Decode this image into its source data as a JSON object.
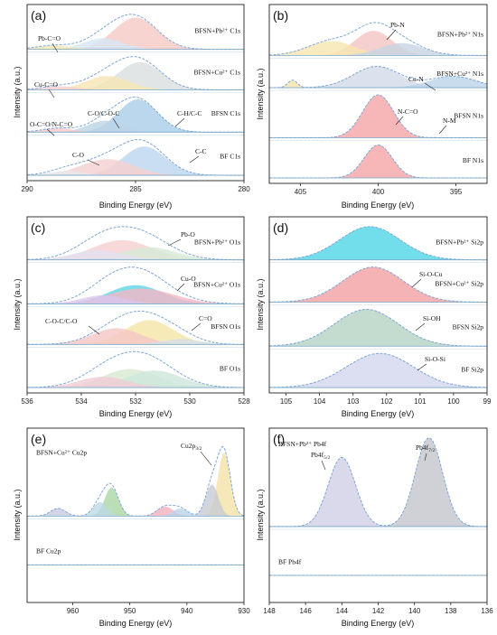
{
  "chart_data": [
    {
      "panel": "(a)",
      "type": "line",
      "xlabel": "Binding Energy (eV)",
      "ylabel": "Intensity (a.u.)",
      "xlim": [
        290,
        280
      ],
      "xticks": [
        290,
        285,
        280
      ],
      "traces": [
        {
          "label": "BFSN+Pb²⁺ C1s",
          "peaks": [
            {
              "c": 285.0,
              "w": 1.0,
              "h": 1.0,
              "col": "#f6c9c4"
            },
            {
              "c": 286.5,
              "w": 0.9,
              "h": 0.35,
              "col": "#d6e6f5"
            },
            {
              "c": 288.8,
              "w": 0.8,
              "h": 0.12,
              "col": "#f4e6b0"
            }
          ]
        },
        {
          "label": "BFSN+Cu²⁺ C1s",
          "peaks": [
            {
              "c": 284.8,
              "w": 1.0,
              "h": 0.9,
              "col": "#d9dede"
            },
            {
              "c": 286.3,
              "w": 1.0,
              "h": 0.45,
              "col": "#f6e6b4"
            },
            {
              "c": 288.5,
              "w": 0.8,
              "h": 0.12,
              "col": "#f5cfd0"
            }
          ]
        },
        {
          "label": "BFSN C1s",
          "peaks": [
            {
              "c": 284.9,
              "w": 0.9,
              "h": 1.0,
              "col": "#a9cde8"
            },
            {
              "c": 286.4,
              "w": 0.8,
              "h": 0.35,
              "col": "#bcd3e6"
            },
            {
              "c": 288.6,
              "w": 0.7,
              "h": 0.12,
              "col": "#f4c9c9"
            }
          ]
        },
        {
          "label": "BF C1s",
          "peaks": [
            {
              "c": 284.6,
              "w": 1.0,
              "h": 0.8,
              "col": "#bcd7ee"
            },
            {
              "c": 286.3,
              "w": 1.2,
              "h": 0.45,
              "col": "#f6cfd0"
            },
            {
              "c": 288.2,
              "w": 0.8,
              "h": 0.12,
              "col": "#e5e9ee"
            }
          ]
        }
      ],
      "annotations": [
        "Pb-C=O",
        "Cu-C=O",
        "O-C=O/N-C=O",
        "C-O/C-O-C",
        "C-H/C-C",
        "C-O",
        "C-C"
      ]
    },
    {
      "panel": "(b)",
      "type": "line",
      "xlabel": "Binding Energy (eV)",
      "ylabel": "Intensity (a.u.)",
      "xlim": [
        407,
        393
      ],
      "xticks": [
        405,
        400,
        395
      ],
      "traces": [
        {
          "label": "BFSN+Pb²⁺ N1s",
          "peaks": [
            {
              "c": 400.3,
              "w": 1.2,
              "h": 0.6,
              "col": "#f4c4c2"
            },
            {
              "c": 403.0,
              "w": 1.5,
              "h": 0.35,
              "col": "#f6e6b0"
            },
            {
              "c": 398.5,
              "w": 1.4,
              "h": 0.3,
              "col": "#c7d5e3"
            }
          ]
        },
        {
          "label": "BFSN+Cu²⁺ N1s",
          "peaks": [
            {
              "c": 400.1,
              "w": 1.5,
              "h": 0.85,
              "col": "#d3dbe8"
            },
            {
              "c": 395.2,
              "w": 1.5,
              "h": 0.45,
              "col": "#bcd3ea"
            },
            {
              "c": 405.5,
              "w": 0.3,
              "h": 0.3,
              "col": "#f4e2a8"
            }
          ]
        },
        {
          "label": "BFSN N1s",
          "peaks": [
            {
              "c": 400.0,
              "w": 1.0,
              "h": 1.0,
              "col": "#f5a5a7"
            }
          ]
        },
        {
          "label": "BF N1s",
          "peaks": [
            {
              "c": 400.0,
              "w": 0.9,
              "h": 1.0,
              "col": "#f5a5a7"
            }
          ]
        }
      ],
      "annotations": [
        "Pb-N",
        "Cu-N",
        "N-C=O",
        "N-M"
      ]
    },
    {
      "panel": "(c)",
      "type": "line",
      "xlabel": "Binding Energy (eV)",
      "ylabel": "Intensity (a.u.)",
      "xlim": [
        536,
        528
      ],
      "xticks": [
        536,
        534,
        532,
        530,
        528
      ],
      "traces": [
        {
          "label": "BFSN+Pb²⁺ O1s",
          "peaks": [
            {
              "c": 532.5,
              "w": 1.1,
              "h": 0.7,
              "col": "#f5cfd0"
            },
            {
              "c": 531.5,
              "w": 1.0,
              "h": 0.45,
              "col": "#d6ead6"
            },
            {
              "c": 533.4,
              "w": 0.9,
              "h": 0.35,
              "col": "#e4e0f0"
            }
          ]
        },
        {
          "label": "BFSN+Cu²⁺ O1s",
          "peaks": [
            {
              "c": 532.0,
              "w": 1.0,
              "h": 0.55,
              "col": "#5fd5e6"
            },
            {
              "c": 531.8,
              "w": 1.2,
              "h": 0.45,
              "col": "#f4b7c4"
            },
            {
              "c": 533.2,
              "w": 0.8,
              "h": 0.25,
              "col": "#d9c7ee"
            }
          ]
        },
        {
          "label": "BFSN O1s",
          "peaks": [
            {
              "c": 531.5,
              "w": 0.9,
              "h": 0.9,
              "col": "#f4e6a6"
            },
            {
              "c": 532.7,
              "w": 0.9,
              "h": 0.6,
              "col": "#f5c6c4"
            },
            {
              "c": 530.3,
              "w": 0.7,
              "h": 0.2,
              "col": "#d6e0ea"
            }
          ]
        },
        {
          "label": "BF O1s",
          "peaks": [
            {
              "c": 532.2,
              "w": 1.0,
              "h": 0.6,
              "col": "#d9e8d2"
            },
            {
              "c": 531.3,
              "w": 1.0,
              "h": 0.55,
              "col": "#cde6dc"
            },
            {
              "c": 533.2,
              "w": 0.9,
              "h": 0.35,
              "col": "#f0ccd6"
            }
          ]
        }
      ],
      "annotations": [
        "Pb-O",
        "Cu-O",
        "C-O-C/C-O",
        "C=O"
      ]
    },
    {
      "panel": "(d)",
      "type": "line",
      "xlabel": "Binding Energy (eV)",
      "ylabel": "Intensity (a.u.)",
      "xlim": [
        105.5,
        99
      ],
      "xticks": [
        105,
        104,
        103,
        102,
        101,
        100,
        99
      ],
      "traces": [
        {
          "label": "BFSN+Pb²⁺ Si2p",
          "peaks": [
            {
              "c": 102.5,
              "w": 0.9,
              "h": 1.0,
              "col": "#4fd6e6"
            }
          ]
        },
        {
          "label": "BFSN+Cu²⁺ Si2p",
          "peaks": [
            {
              "c": 102.4,
              "w": 0.9,
              "h": 1.0,
              "col": "#f3a0a3"
            }
          ]
        },
        {
          "label": "BFSN Si2p",
          "peaks": [
            {
              "c": 102.6,
              "w": 0.95,
              "h": 1.0,
              "col": "#b4d3c3"
            }
          ]
        },
        {
          "label": "BF Si2p",
          "peaks": [
            {
              "c": 102.2,
              "w": 1.0,
              "h": 1.0,
              "col": "#d3d6ee"
            }
          ]
        }
      ],
      "annotations": [
        "Si-O-Cu",
        "Si-OH",
        "Si-O-Si"
      ]
    },
    {
      "panel": "(e)",
      "type": "line",
      "xlabel": "Binding Energy (eV)",
      "ylabel": "Intensity (a.u.)",
      "xlim": [
        968,
        930
      ],
      "xticks": [
        960,
        950,
        940,
        930
      ],
      "traces": [
        {
          "label": "BFSN+Cu²⁺ Cu2p",
          "peaks": [
            {
              "c": 933.5,
              "w": 1.1,
              "h": 1.0,
              "col": "#f4e2a6"
            },
            {
              "c": 935.6,
              "w": 1.1,
              "h": 0.5,
              "col": "#c7cad2"
            },
            {
              "c": 953.2,
              "w": 1.2,
              "h": 0.45,
              "col": "#a9d6a2"
            },
            {
              "c": 955.2,
              "w": 1.2,
              "h": 0.22,
              "col": "#bdd8e6"
            },
            {
              "c": 943.8,
              "w": 1.4,
              "h": 0.15,
              "col": "#f3b0bc"
            },
            {
              "c": 962.6,
              "w": 1.3,
              "h": 0.12,
              "col": "#c7cbe0"
            },
            {
              "c": 941.2,
              "w": 1.3,
              "h": 0.12,
              "col": "#bcd3ea"
            }
          ]
        },
        {
          "label": "BF Cu2p",
          "peaks": []
        }
      ],
      "annotations": [
        "Cu2p3/2"
      ]
    },
    {
      "panel": "(f)",
      "type": "line",
      "xlabel": "Binding Energy (eV)",
      "ylabel": "Intensity (a.u.)",
      "xlim": [
        148,
        136
      ],
      "xticks": [
        148,
        146,
        144,
        142,
        140,
        138,
        136
      ],
      "traces": [
        {
          "label": "BFSN+Pb²⁺ Pb4f",
          "peaks": [
            {
              "c": 139.2,
              "w": 0.75,
              "h": 1.0,
              "col": "#c4c6cc"
            },
            {
              "c": 144.0,
              "w": 0.75,
              "h": 0.78,
              "col": "#cfcfe6"
            }
          ]
        },
        {
          "label": "BF Pb4f",
          "peaks": []
        }
      ],
      "annotations": [
        "Pb4f7/2",
        "Pb4f5/2"
      ]
    }
  ]
}
